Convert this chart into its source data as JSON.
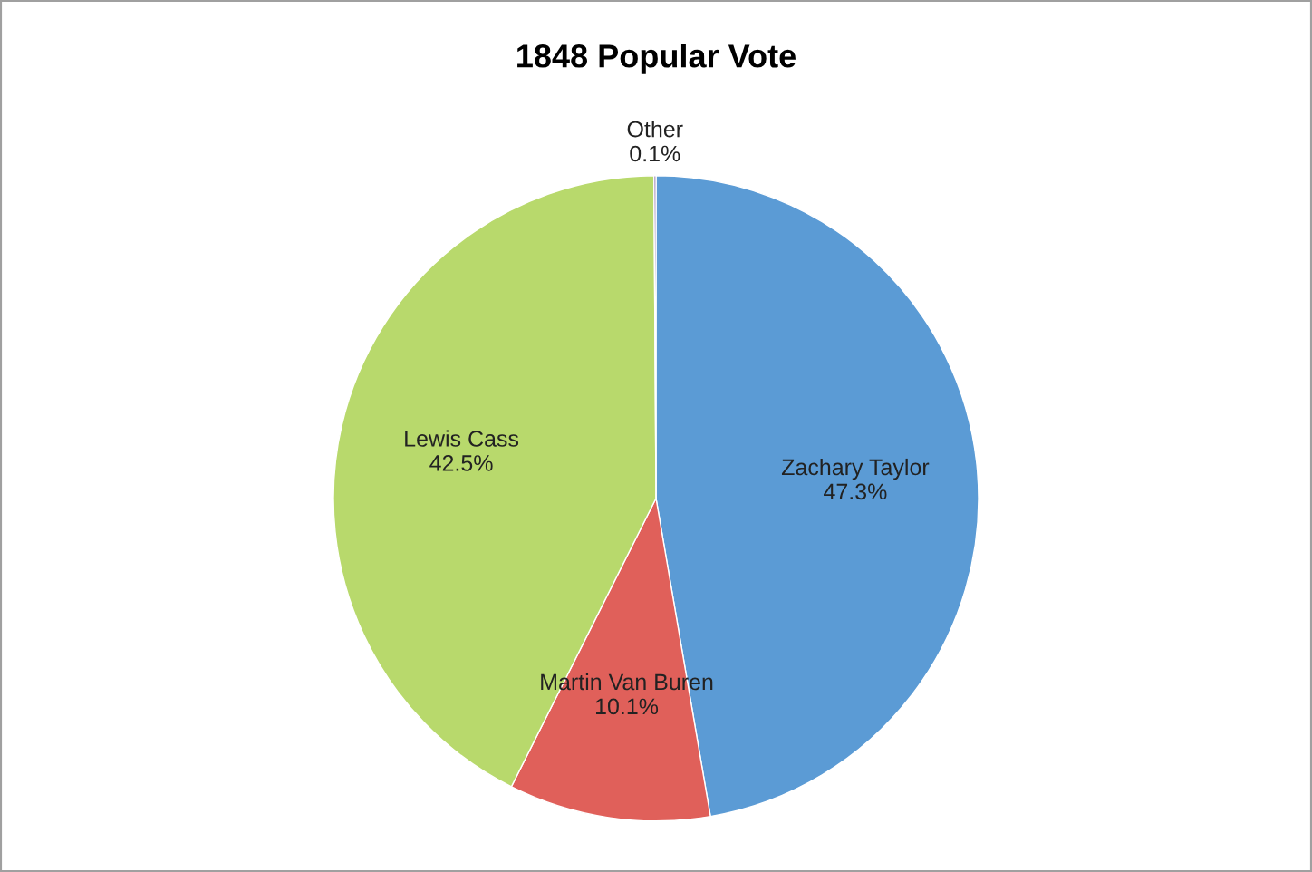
{
  "chart_data": {
    "type": "pie",
    "title": "1848 Popular Vote",
    "categories": [
      "Zachary Taylor",
      "Martin Van Buren",
      "Lewis Cass",
      "Other"
    ],
    "values": [
      47.3,
      10.1,
      42.5,
      0.1
    ],
    "value_labels": [
      "47.3%",
      "10.1%",
      "42.5%",
      "0.1%"
    ],
    "colors": [
      "#5b9bd5",
      "#e0605a",
      "#b8d96c",
      "#8064a2"
    ],
    "legend": false
  }
}
